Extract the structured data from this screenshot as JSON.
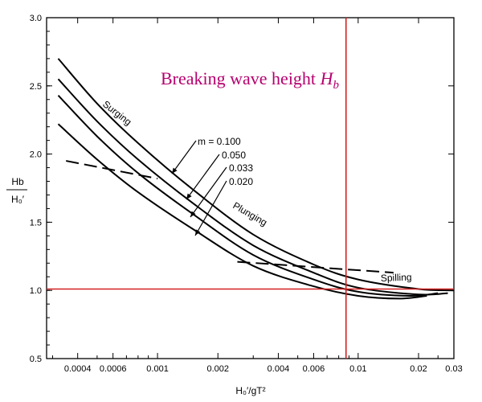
{
  "overlay": {
    "title_text": "Breaking wave height ",
    "title_var": "H",
    "title_sub": "b",
    "title_color": "#b5006e",
    "marker_color": "#d42020",
    "marker_x": 0.0087,
    "marker_y": 1.01
  },
  "chart_data": {
    "type": "line",
    "x_scale": "log",
    "xlim": [
      0.00028,
      0.03
    ],
    "ylim": [
      0.5,
      3.0
    ],
    "xlabel": "H₀′/gT²",
    "ylabel_num": "Hb",
    "ylabel_den": "H₀′",
    "x_ticks": [
      {
        "value": 0.0004,
        "label": "0.0004"
      },
      {
        "value": 0.0006,
        "label": "0.0006"
      },
      {
        "value": 0.001,
        "label": "0.001"
      },
      {
        "value": 0.002,
        "label": "0.002"
      },
      {
        "value": 0.004,
        "label": "0.004"
      },
      {
        "value": 0.006,
        "label": "0.006"
      },
      {
        "value": 0.01,
        "label": "0.01"
      },
      {
        "value": 0.02,
        "label": "0.02"
      },
      {
        "value": 0.03,
        "label": "0.03"
      }
    ],
    "y_ticks": [
      {
        "value": 0.5,
        "label": "0.5"
      },
      {
        "value": 1.0,
        "label": "1.0"
      },
      {
        "value": 1.5,
        "label": "1.5"
      },
      {
        "value": 2.0,
        "label": "2.0"
      },
      {
        "value": 2.5,
        "label": "2.5"
      },
      {
        "value": 3.0,
        "label": "3.0"
      }
    ],
    "series": [
      {
        "name": "m = 0.100",
        "x": [
          0.00032,
          0.0005,
          0.0008,
          0.0015,
          0.003,
          0.006,
          0.01,
          0.02,
          0.03
        ],
        "y": [
          2.7,
          2.37,
          2.08,
          1.74,
          1.41,
          1.19,
          1.08,
          1.01,
          1.0
        ]
      },
      {
        "name": "0.050",
        "x": [
          0.00032,
          0.0005,
          0.0008,
          0.0015,
          0.003,
          0.006,
          0.01,
          0.02,
          0.028
        ],
        "y": [
          2.55,
          2.24,
          1.96,
          1.64,
          1.33,
          1.13,
          1.02,
          0.97,
          0.98
        ]
      },
      {
        "name": "0.033",
        "x": [
          0.00032,
          0.0005,
          0.0008,
          0.0015,
          0.003,
          0.006,
          0.01,
          0.018,
          0.025
        ],
        "y": [
          2.43,
          2.13,
          1.86,
          1.56,
          1.26,
          1.08,
          0.99,
          0.96,
          0.98
        ]
      },
      {
        "name": "0.020",
        "x": [
          0.00032,
          0.0005,
          0.0008,
          0.0015,
          0.003,
          0.006,
          0.01,
          0.016,
          0.022
        ],
        "y": [
          2.22,
          1.96,
          1.72,
          1.45,
          1.18,
          1.03,
          0.96,
          0.94,
          0.96
        ]
      }
    ],
    "curve_labels": [
      "m = 0.100",
      "0.050",
      "0.033",
      "0.020"
    ],
    "region_labels": [
      "Surging",
      "Plunging",
      "Spilling"
    ],
    "breaker_boundaries": [
      {
        "x": [
          0.00035,
          0.001
        ],
        "y": [
          1.95,
          1.82
        ]
      },
      {
        "x": [
          0.0025,
          0.015
        ],
        "y": [
          1.21,
          1.13
        ]
      }
    ]
  }
}
